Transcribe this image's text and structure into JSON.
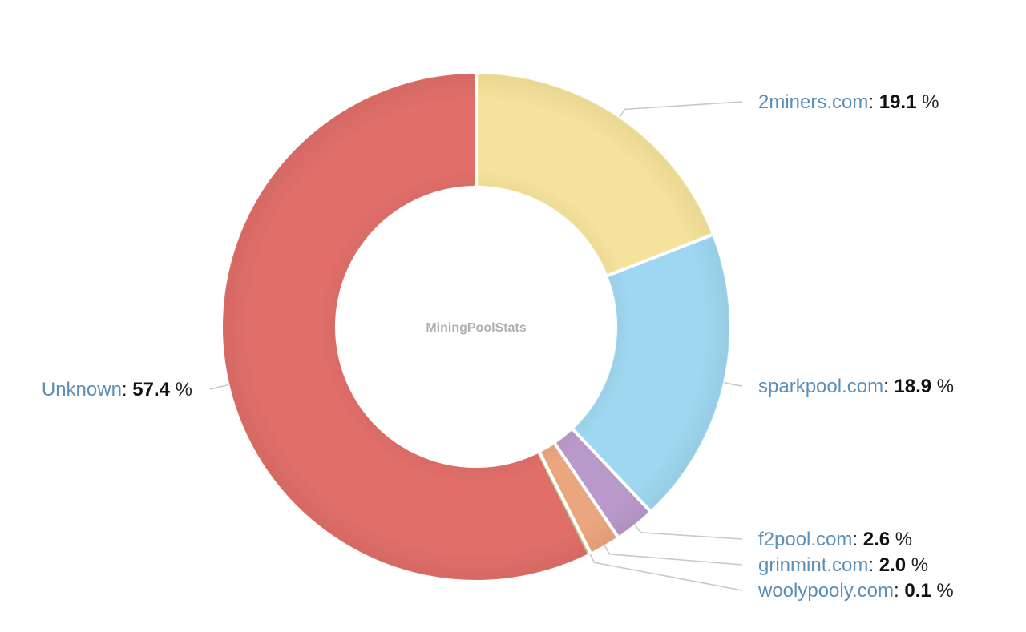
{
  "chart_data": {
    "type": "pie",
    "variant": "donut",
    "center_label": "MiningPoolStats",
    "unit": "%",
    "slices": [
      {
        "name": "2miners.com",
        "value": 19.1,
        "value_label": "19.1",
        "color": "#f5e29b"
      },
      {
        "name": "sparkpool.com",
        "value": 18.9,
        "value_label": "18.9",
        "color": "#9fd7f0"
      },
      {
        "name": "f2pool.com",
        "value": 2.6,
        "value_label": "2.6",
        "color": "#b999c9"
      },
      {
        "name": "grinmint.com",
        "value": 2.0,
        "value_label": "2.0",
        "color": "#eaa67e"
      },
      {
        "name": "woolypooly.com",
        "value": 0.1,
        "value_label": "0.1",
        "color": "#b5c98a"
      },
      {
        "name": "Unknown",
        "value": 57.4,
        "value_label": "57.4",
        "color": "#e06e69"
      }
    ]
  }
}
